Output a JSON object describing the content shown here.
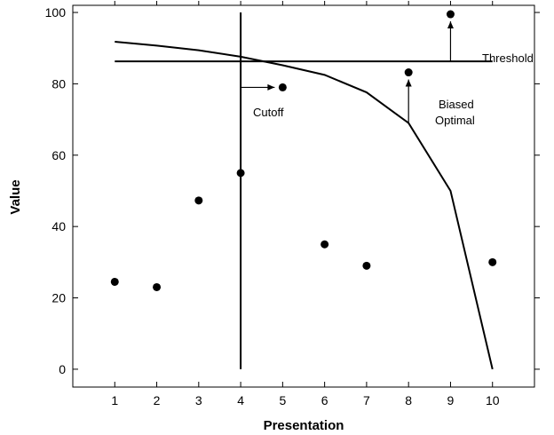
{
  "chart_data": {
    "type": "scatter",
    "title": "",
    "xlabel": "Presentation",
    "ylabel": "Value",
    "xlim": [
      0,
      11
    ],
    "ylim": [
      -5,
      102
    ],
    "xticks": [
      1,
      2,
      3,
      4,
      5,
      6,
      7,
      8,
      9,
      10
    ],
    "yticks": [
      0,
      20,
      40,
      60,
      80,
      100
    ],
    "grid": false,
    "points": {
      "x": [
        1,
        2,
        3,
        4,
        5,
        6,
        7,
        8,
        9,
        10
      ],
      "y": [
        24.5,
        23,
        47.3,
        55,
        79,
        35,
        29,
        83.2,
        99.5,
        30
      ]
    },
    "optimal_curve": {
      "x": [
        1,
        2,
        3,
        4,
        5,
        6,
        7,
        8,
        9,
        10
      ],
      "y": [
        91.8,
        90.7,
        89.4,
        87.6,
        85.2,
        82.5,
        77.6,
        69,
        50,
        0
      ]
    },
    "threshold": {
      "y": 86.3,
      "x_range": [
        1,
        10
      ]
    },
    "cutoff": {
      "x": 4,
      "y_range": [
        0,
        100
      ]
    },
    "annotations": [
      {
        "id": "threshold",
        "text": "Threshold"
      },
      {
        "id": "cutoff",
        "text": "Cutoff"
      },
      {
        "id": "biased",
        "text": "Biased"
      },
      {
        "id": "optimal",
        "text": "Optimal"
      }
    ]
  }
}
